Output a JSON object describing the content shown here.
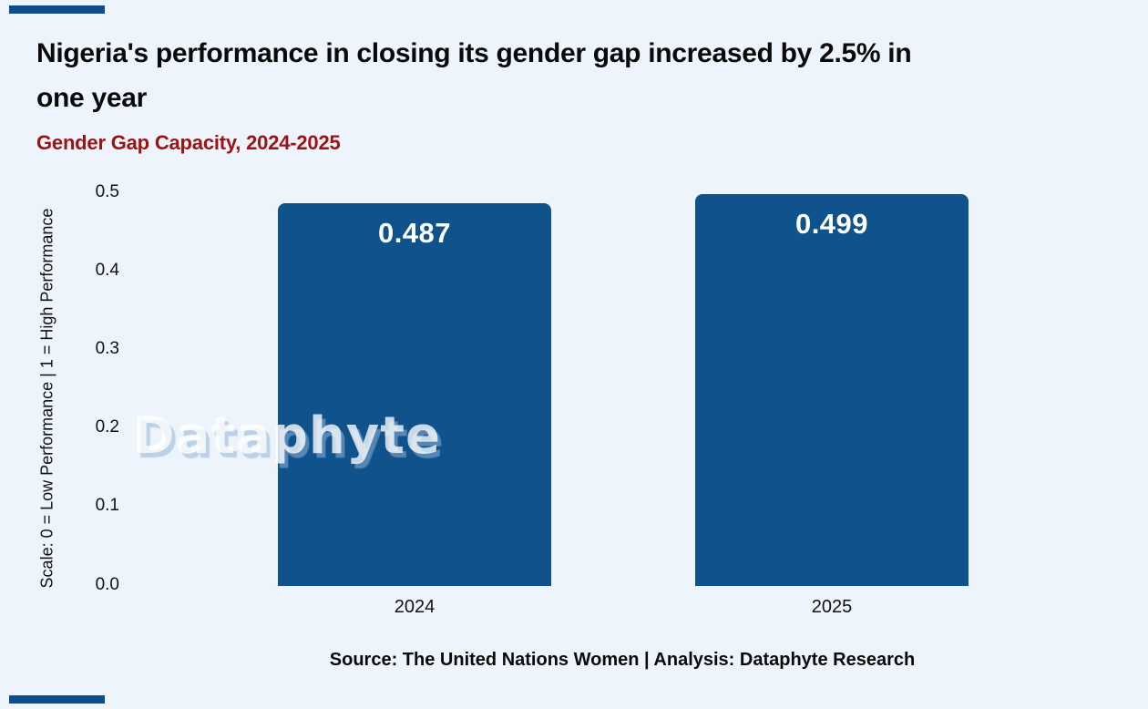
{
  "page": {
    "background_color": "#EDF4FB",
    "accent_bar_color": "#0F4C8A"
  },
  "header": {
    "title_line1": "Nigeria's performance in closing its gender gap increased by 2.5% in",
    "title_line2": "one year",
    "subtitle": "Gender Gap Capacity, 2024-2025"
  },
  "chart_data": {
    "type": "bar",
    "title": "Gender Gap Capacity, 2024-2025",
    "categories": [
      "2024",
      "2025"
    ],
    "values": [
      0.487,
      0.499
    ],
    "value_labels": [
      "0.487",
      "0.499"
    ],
    "xlabel": "",
    "ylabel": "Scale: 0 = Low Performance | 1 = High Performance",
    "yticks": [
      "0.0",
      "0.1",
      "0.2",
      "0.3",
      "0.4",
      "0.5"
    ],
    "ylim": [
      0,
      0.5
    ],
    "grid": false,
    "legend": "none",
    "bar_color": "#0F528C",
    "value_label_color": "#FFFFFF"
  },
  "watermark": {
    "text": "Dataphyte"
  },
  "footer": {
    "source_text": "Source: The United Nations Women | Analysis: Dataphyte Research"
  }
}
